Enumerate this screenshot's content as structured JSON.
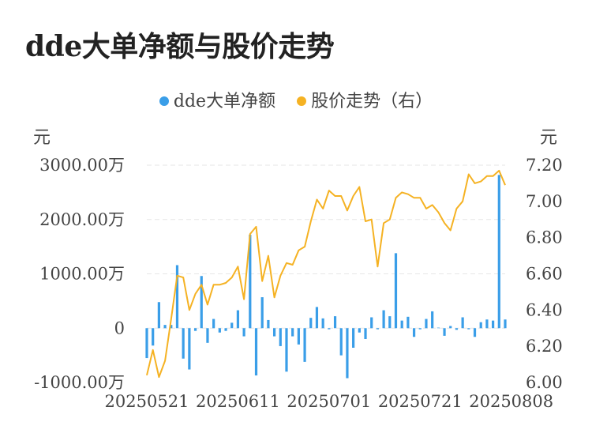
{
  "colors": {
    "bar": "#3a9ee8",
    "line": "#f5b223",
    "grid": "#e6e6e6",
    "text": "#444444"
  },
  "chart_data": {
    "type": "bar+line",
    "title": "dde大单净额与股价走势",
    "legend": [
      {
        "label": "dde大单净额",
        "color": "#3a9ee8"
      },
      {
        "label": "股价走势（右）",
        "color": "#f5b223"
      }
    ],
    "left_unit": "元",
    "right_unit": "元",
    "left_ticks": [
      {
        "v": 3000,
        "label": "3000.00万"
      },
      {
        "v": 2000,
        "label": "2000.00万"
      },
      {
        "v": 1000,
        "label": "1000.00万"
      },
      {
        "v": 0,
        "label": "0"
      },
      {
        "v": -1000,
        "label": "-1000.00万"
      }
    ],
    "right_ticks": [
      {
        "v": 7.2,
        "label": "7.20"
      },
      {
        "v": 7.0,
        "label": "7.00"
      },
      {
        "v": 6.8,
        "label": "6.80"
      },
      {
        "v": 6.6,
        "label": "6.60"
      },
      {
        "v": 6.4,
        "label": "6.40"
      },
      {
        "v": 6.2,
        "label": "6.20"
      },
      {
        "v": 6.0,
        "label": "6.00"
      }
    ],
    "y_left_range": [
      -1000,
      3000
    ],
    "y_right_range": [
      6.0,
      7.2
    ],
    "x_tick_labels": [
      {
        "index": 0,
        "label": "20250521"
      },
      {
        "index": 15,
        "label": "20250611"
      },
      {
        "index": 30,
        "label": "20250701"
      },
      {
        "index": 45,
        "label": "20250721"
      },
      {
        "index": 60,
        "label": "20250808"
      }
    ],
    "series": [
      {
        "name": "dde大单净额",
        "unit": "万",
        "values": [
          -550,
          -320,
          480,
          60,
          60,
          1160,
          -560,
          -760,
          -50,
          960,
          -270,
          170,
          -80,
          -50,
          100,
          330,
          -150,
          1720,
          -870,
          570,
          150,
          -150,
          -330,
          -800,
          -150,
          -300,
          -620,
          190,
          390,
          180,
          -20,
          220,
          -500,
          -920,
          -360,
          -80,
          -200,
          200,
          -20,
          330,
          220,
          1380,
          140,
          210,
          -160,
          -20,
          170,
          310,
          10,
          -140,
          40,
          -30,
          200,
          -20,
          -160,
          110,
          160,
          140,
          2820,
          160
        ]
      },
      {
        "name": "股价走势（右）",
        "values": [
          6.04,
          6.18,
          6.03,
          6.12,
          6.35,
          6.59,
          6.58,
          6.4,
          6.49,
          6.54,
          6.43,
          6.54,
          6.54,
          6.55,
          6.58,
          6.64,
          6.46,
          6.82,
          6.86,
          6.56,
          6.7,
          6.47,
          6.59,
          6.66,
          6.65,
          6.73,
          6.75,
          6.89,
          7.01,
          6.96,
          7.06,
          7.03,
          7.03,
          6.95,
          7.03,
          7.08,
          6.89,
          6.9,
          6.64,
          6.88,
          6.9,
          7.02,
          7.05,
          7.04,
          7.02,
          7.02,
          6.96,
          6.98,
          6.94,
          6.88,
          6.84,
          6.96,
          7.0,
          7.15,
          7.1,
          7.11,
          7.14,
          7.14,
          7.17,
          7.09
        ]
      }
    ]
  }
}
